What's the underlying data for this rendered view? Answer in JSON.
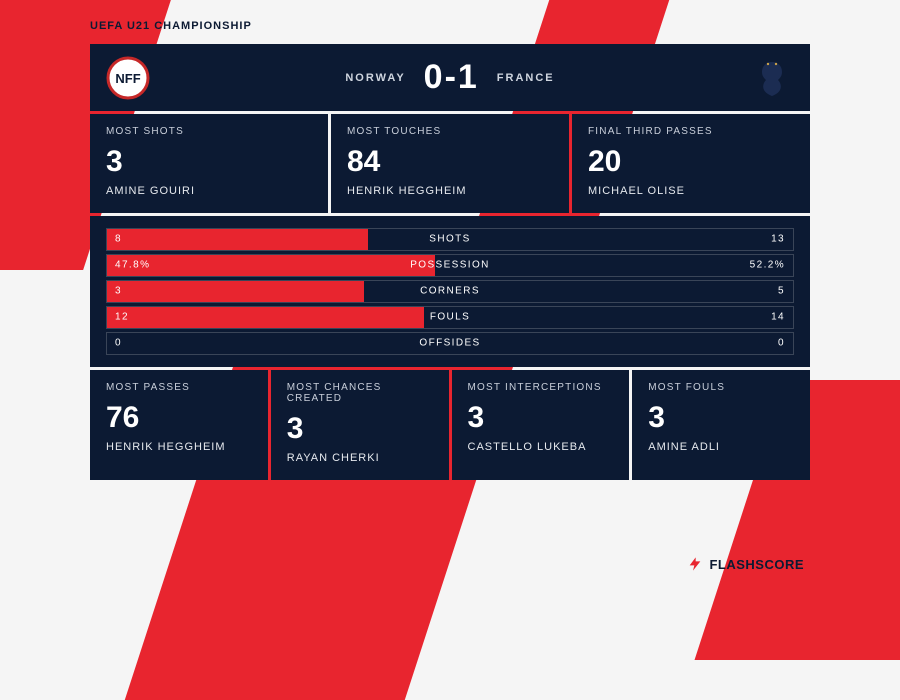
{
  "competition": "UEFA U21 CHAMPIONSHIP",
  "colors": {
    "panel_bg": "#0c1a33",
    "accent": "#e8252f",
    "page_bg": "#f5f5f5",
    "bar_border": "#3a4558",
    "text_muted": "#c9cfda"
  },
  "header": {
    "home_team": "NORWAY",
    "away_team": "FRANCE",
    "score": "0-1"
  },
  "top_cards": [
    {
      "label": "MOST SHOTS",
      "value": "3",
      "player": "AMINE GOUIRI"
    },
    {
      "label": "MOST TOUCHES",
      "value": "84",
      "player": "HENRIK HEGGHEIM"
    },
    {
      "label": "FINAL THIRD PASSES",
      "value": "20",
      "player": "MICHAEL OLISE"
    }
  ],
  "bars": [
    {
      "home": "8",
      "label": "SHOTS",
      "away": "13",
      "fill_pct": 38.1
    },
    {
      "home": "47.8%",
      "label": "POSSESSION",
      "away": "52.2%",
      "fill_pct": 47.8
    },
    {
      "home": "3",
      "label": "CORNERS",
      "away": "5",
      "fill_pct": 37.5
    },
    {
      "home": "12",
      "label": "FOULS",
      "away": "14",
      "fill_pct": 46.2
    },
    {
      "home": "0",
      "label": "OFFSIDES",
      "away": "0",
      "fill_pct": 0
    }
  ],
  "bottom_cards": [
    {
      "label": "MOST PASSES",
      "value": "76",
      "player": "HENRIK HEGGHEIM"
    },
    {
      "label": "MOST CHANCES CREATED",
      "value": "3",
      "player": "RAYAN CHERKI"
    },
    {
      "label": "MOST INTERCEPTIONS",
      "value": "3",
      "player": "CASTELLO LUKEBA"
    },
    {
      "label": "MOST FOULS",
      "value": "3",
      "player": "AMINE ADLI"
    }
  ],
  "brand": "FLASHSCORE"
}
